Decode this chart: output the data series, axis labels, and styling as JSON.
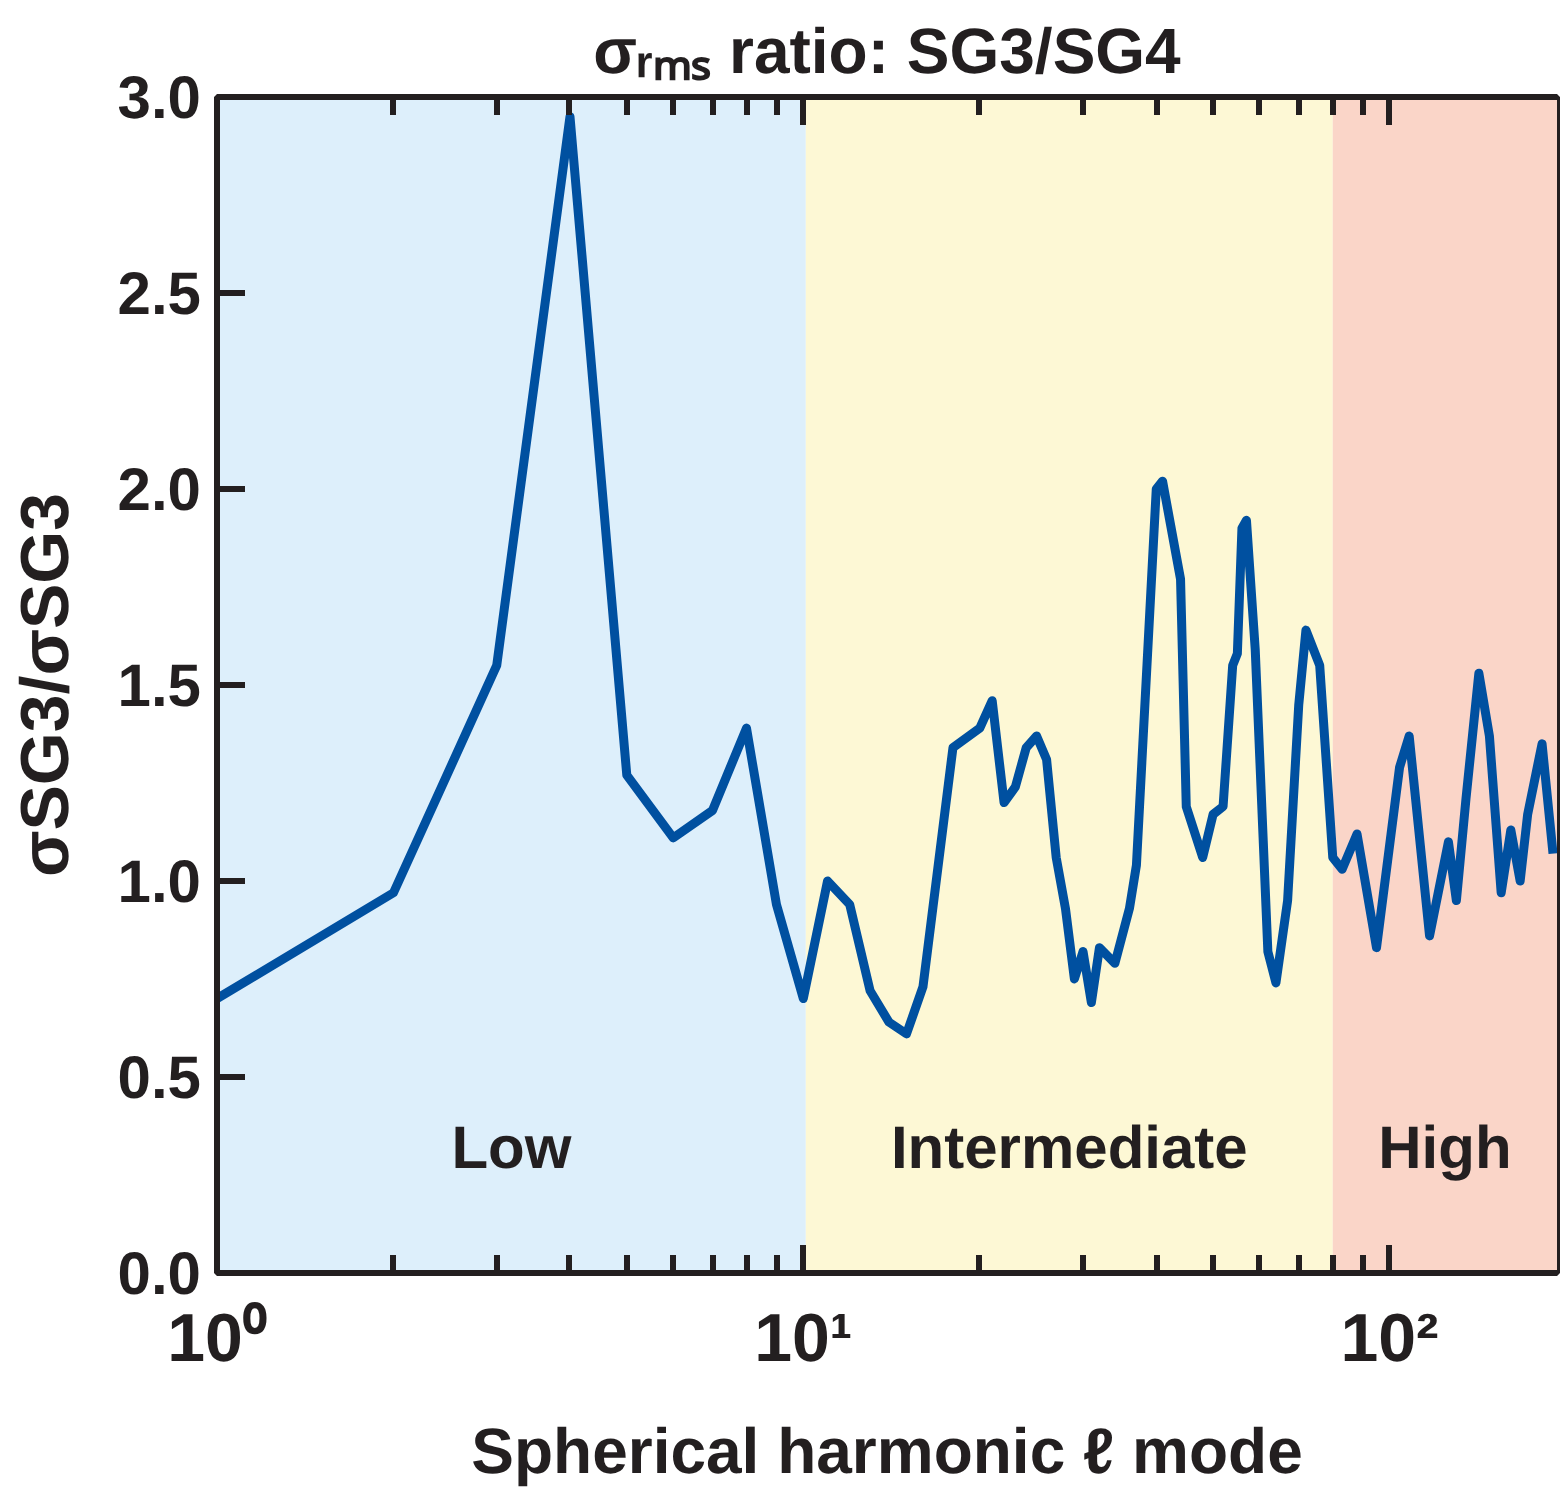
{
  "chart_data": {
    "type": "line",
    "title": "σᵣₘₛ ratio: SG3/SG4",
    "xlabel": "Spherical harmonic ℓ mode",
    "ylabel": "σSG3/σSG3",
    "log": "x",
    "xlim": [
      1,
      193
    ],
    "xticks": [
      {
        "value": 1,
        "label": "10⁰"
      },
      {
        "value": 10,
        "label": "10¹"
      },
      {
        "value": 100,
        "label": "10²"
      }
    ],
    "ylim": [
      0,
      3
    ],
    "yticks": [
      {
        "value": 0,
        "label": "0.0"
      },
      0.5,
      {
        "value": 1,
        "label": "1.0"
      },
      1.5,
      {
        "value": 2,
        "label": "2.0"
      },
      2.5,
      {
        "value": 3,
        "label": "3.0"
      }
    ],
    "bands": [
      {
        "axis": "x",
        "from": 1,
        "to": 10.1,
        "label": "Low",
        "color": "#ddeffb"
      },
      {
        "axis": "x",
        "from": 10.1,
        "to": 80,
        "label": "Intermediate",
        "color": "#fdf8d5"
      },
      {
        "axis": "x",
        "from": 80,
        "to": 193,
        "label": "High",
        "color": "#fad5c8"
      }
    ],
    "series": [
      {
        "color": "#0050a0",
        "line_style": "solid",
        "marker": "none",
        "x": [
          1,
          2,
          3,
          4,
          5,
          6,
          7,
          8,
          9,
          10,
          11,
          12,
          13,
          14,
          15,
          16,
          18,
          20,
          21,
          22,
          23,
          24,
          25,
          26,
          27,
          28,
          29,
          30,
          31,
          32,
          34,
          36,
          37,
          40,
          41,
          44,
          45,
          48,
          50,
          52,
          54,
          55,
          56,
          57,
          59,
          62,
          64,
          67,
          70,
          72,
          76,
          80,
          83,
          88,
          95,
          104,
          108,
          117,
          126,
          130,
          135,
          142,
          148,
          155,
          161,
          167,
          172,
          182,
          190
        ],
        "values": [
          0.7,
          0.97,
          1.55,
          2.95,
          1.27,
          1.11,
          1.18,
          1.39,
          0.94,
          0.7,
          1.0,
          0.94,
          0.72,
          0.64,
          0.61,
          0.73,
          1.34,
          1.39,
          1.46,
          1.2,
          1.24,
          1.34,
          1.37,
          1.31,
          1.06,
          0.93,
          0.75,
          0.82,
          0.69,
          0.83,
          0.79,
          0.93,
          1.04,
          2.0,
          2.02,
          1.77,
          1.19,
          1.06,
          1.17,
          1.19,
          1.55,
          1.58,
          1.9,
          1.92,
          1.59,
          0.82,
          0.74,
          0.95,
          1.45,
          1.64,
          1.55,
          1.06,
          1.03,
          1.12,
          0.83,
          1.29,
          1.37,
          0.86,
          1.1,
          0.95,
          1.21,
          1.53,
          1.37,
          0.97,
          1.13,
          1.0,
          1.17,
          1.35,
          1.07
        ]
      }
    ]
  }
}
